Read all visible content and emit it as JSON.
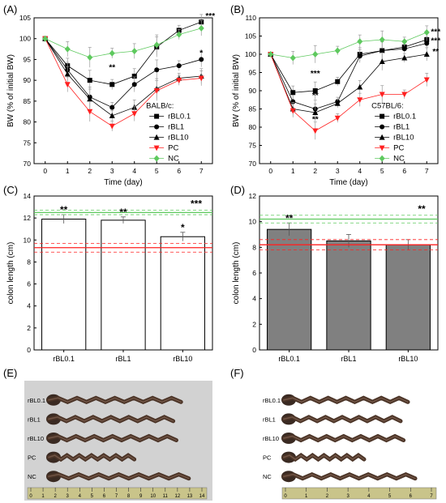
{
  "panels": {
    "A": "(A)",
    "B": "(B)",
    "C": "(C)",
    "D": "(D)",
    "E": "(E)",
    "F": "(F)"
  },
  "colors": {
    "rBL0.1": "#000000",
    "rBL1": "#000000",
    "rBL10": "#000000",
    "PC": "#ff2020",
    "NC": "#5ec95e",
    "bar_D": "#808080",
    "bar_C": "#ffffff"
  },
  "chart_data": [
    {
      "id": "A",
      "type": "line",
      "xlabel": "Time (day)",
      "ylabel": "BW (% of initial BW)",
      "xlim": [
        -0.5,
        7.5
      ],
      "ylim": [
        70,
        105
      ],
      "xticks": [
        0,
        1,
        2,
        3,
        4,
        5,
        6,
        7
      ],
      "yticks": [
        70,
        75,
        80,
        85,
        90,
        95,
        100,
        105
      ],
      "legend_title": "BALB/c:",
      "legend_position": "lower-right",
      "x": [
        0,
        1,
        2,
        3,
        4,
        5,
        6,
        7
      ],
      "series": [
        {
          "name": "rBL0.1",
          "marker": "square",
          "values": [
            100,
            93.5,
            90,
            89,
            91,
            98,
            102,
            104
          ]
        },
        {
          "name": "rBL1",
          "marker": "circle",
          "values": [
            100,
            92.5,
            86,
            83.5,
            89,
            92.5,
            93.5,
            95
          ]
        },
        {
          "name": "rBL10",
          "marker": "triangle-up",
          "values": [
            100,
            91.5,
            85.5,
            81.5,
            83.5,
            88,
            90.5,
            91
          ]
        },
        {
          "name": "PC",
          "marker": "triangle-down",
          "values": [
            100,
            89,
            82.5,
            79,
            82,
            87.5,
            90,
            90.5
          ]
        },
        {
          "name": "NC",
          "marker": "diamond",
          "values": [
            100,
            97.5,
            95.5,
            96.5,
            97,
            98.5,
            101,
            102.5
          ]
        }
      ],
      "annotations": [
        {
          "text": "**",
          "x": 3,
          "y": 92.5
        },
        {
          "text": "*",
          "x": 7,
          "y": 96
        },
        {
          "text": "***",
          "x": 7.4,
          "y": 104.8
        }
      ]
    },
    {
      "id": "B",
      "type": "line",
      "xlabel": "Time (day)",
      "ylabel": "BW (% of initial BW)",
      "xlim": [
        -0.5,
        7.5
      ],
      "ylim": [
        70,
        110
      ],
      "xticks": [
        0,
        1,
        2,
        3,
        4,
        5,
        6,
        7
      ],
      "yticks": [
        70,
        75,
        80,
        85,
        90,
        95,
        100,
        105,
        110
      ],
      "legend_title": "C57BL/6:",
      "legend_position": "lower-right",
      "x": [
        0,
        1,
        2,
        3,
        4,
        5,
        6,
        7
      ],
      "series": [
        {
          "name": "rBL0.1",
          "marker": "square",
          "values": [
            100,
            89.5,
            90,
            92.5,
            100,
            101,
            102,
            104
          ]
        },
        {
          "name": "rBL1",
          "marker": "circle",
          "values": [
            100,
            87,
            85,
            87,
            99.5,
            101,
            101.5,
            103
          ]
        },
        {
          "name": "rBL10",
          "marker": "triangle-up",
          "values": [
            100,
            85,
            84,
            86.5,
            91,
            98,
            99,
            100
          ]
        },
        {
          "name": "PC",
          "marker": "triangle-down",
          "values": [
            100,
            84.5,
            79,
            82.5,
            87.5,
            89,
            89,
            93
          ]
        },
        {
          "name": "NC",
          "marker": "diamond",
          "values": [
            100,
            99,
            100,
            101,
            103.5,
            104,
            103.5,
            106
          ]
        }
      ],
      "annotations": [
        {
          "text": "***",
          "x": 2,
          "y": 94
        },
        {
          "text": "**",
          "x": 2,
          "y": 88
        },
        {
          "text": "**",
          "x": 2,
          "y": 81.5
        },
        {
          "text": "***",
          "x": 7.4,
          "y": 105.5
        },
        {
          "text": "***",
          "x": 7.4,
          "y": 103
        },
        {
          "text": "**",
          "x": 7.4,
          "y": 100
        }
      ]
    },
    {
      "id": "C",
      "type": "bar",
      "ylabel": "colon length (cm)",
      "ylim": [
        0,
        14
      ],
      "yticks": [
        0,
        2,
        4,
        6,
        8,
        10,
        12,
        14
      ],
      "categories": [
        "rBL0.1",
        "rBL1",
        "rBL10"
      ],
      "values": [
        11.9,
        11.8,
        10.3
      ],
      "errors": [
        0.4,
        0.3,
        0.4
      ],
      "bar_fill": "#ffffff",
      "reference_lines": [
        {
          "group": "NC",
          "mean": 12.5,
          "sd": 0.2
        },
        {
          "group": "PC",
          "mean": 9.3,
          "sd": 0.4
        }
      ],
      "annotations": [
        {
          "text": "**",
          "category": 0
        },
        {
          "text": "**",
          "category": 1
        },
        {
          "text": "*",
          "category": 2
        },
        {
          "text": "***",
          "category": 2,
          "side": "right"
        }
      ]
    },
    {
      "id": "D",
      "type": "bar",
      "ylabel": "colon length (cm)",
      "ylim": [
        0,
        12
      ],
      "yticks": [
        0,
        2,
        4,
        6,
        8,
        10,
        12
      ],
      "categories": [
        "rBL0.1",
        "rBL1",
        "rBL10"
      ],
      "values": [
        9.4,
        8.5,
        8.2
      ],
      "errors": [
        0.5,
        0.5,
        0.4
      ],
      "bar_fill": "#808080",
      "reference_lines": [
        {
          "group": "NC",
          "mean": 10.2,
          "sd": 0.3
        },
        {
          "group": "PC",
          "mean": 8.2,
          "sd": 0.4
        }
      ],
      "annotations": [
        {
          "text": "**",
          "category": 0
        },
        {
          "text": "**",
          "category": 2,
          "side": "right"
        }
      ]
    }
  ],
  "photos": {
    "E": {
      "labels": [
        "rBL0.1",
        "rBL1",
        "rBL10",
        "PC",
        "NC"
      ],
      "ruler": [
        "0",
        "1",
        "2",
        "3",
        "4",
        "5",
        "6",
        "7",
        "8",
        "9",
        "10",
        "11",
        "12",
        "13",
        "14"
      ]
    },
    "F": {
      "labels": [
        "rBL0.1",
        "rBL1",
        "rBL10",
        "PC",
        "NC"
      ],
      "ruler": [
        "0",
        "1",
        "2",
        "3",
        "4",
        "5",
        "6",
        "7"
      ]
    }
  }
}
